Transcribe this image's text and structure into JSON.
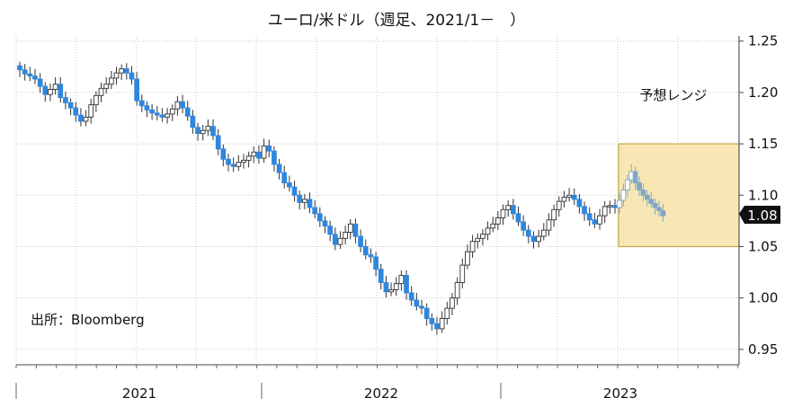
{
  "chart_data": {
    "type": "candlestick",
    "title": "ユーロ/米ドル（週足、2021/1－　）",
    "source_note": "出所：Bloomberg",
    "range_label": "予想レンジ",
    "current_label": "1.08",
    "xlabel": "",
    "ylabel": "",
    "ylim": [
      0.935,
      1.255
    ],
    "y_ticks": [
      {
        "value": 0.95,
        "label": "0.95"
      },
      {
        "value": 1.0,
        "label": "1.00"
      },
      {
        "value": 1.05,
        "label": "1.05"
      },
      {
        "value": 1.1,
        "label": "1.10"
      },
      {
        "value": 1.15,
        "label": "1.15"
      },
      {
        "value": 1.2,
        "label": "1.20"
      },
      {
        "value": 1.25,
        "label": "1.25"
      }
    ],
    "x_labels": [
      "2021",
      "2022",
      "2023"
    ],
    "grid": true,
    "forecast_range": {
      "y_low": 1.05,
      "y_high": 1.15
    },
    "colors": {
      "up": "#ffffff",
      "down": "#2e86de",
      "projection": "#7fa7c7",
      "forecast_fill": "#f8e7b4",
      "forecast_border": "#c9a646",
      "grid": "#c8c8c8",
      "badge": "#111111"
    },
    "closes": [
      1.222,
      1.218,
      1.216,
      1.213,
      1.206,
      1.198,
      1.203,
      1.208,
      1.195,
      1.19,
      1.185,
      1.178,
      1.172,
      1.176,
      1.188,
      1.197,
      1.204,
      1.208,
      1.214,
      1.219,
      1.223,
      1.219,
      1.213,
      1.192,
      1.187,
      1.183,
      1.18,
      1.178,
      1.176,
      1.179,
      1.184,
      1.191,
      1.185,
      1.177,
      1.166,
      1.16,
      1.163,
      1.167,
      1.158,
      1.145,
      1.135,
      1.13,
      1.128,
      1.132,
      1.134,
      1.138,
      1.142,
      1.136,
      1.148,
      1.143,
      1.13,
      1.122,
      1.112,
      1.108,
      1.1,
      1.093,
      1.096,
      1.088,
      1.082,
      1.075,
      1.07,
      1.062,
      1.052,
      1.058,
      1.064,
      1.072,
      1.06,
      1.05,
      1.042,
      1.04,
      1.028,
      1.015,
      1.006,
      1.008,
      1.014,
      1.022,
      1.005,
      0.998,
      0.992,
      0.99,
      0.98,
      0.975,
      0.97,
      0.98,
      0.99,
      1.0,
      1.015,
      1.032,
      1.045,
      1.055,
      1.058,
      1.062,
      1.068,
      1.072,
      1.078,
      1.086,
      1.09,
      1.082,
      1.074,
      1.066,
      1.06,
      1.055,
      1.06,
      1.066,
      1.076,
      1.086,
      1.094,
      1.098,
      1.1,
      1.096,
      1.089,
      1.082,
      1.076,
      1.072,
      1.08,
      1.089,
      1.09,
      1.088
    ],
    "projection": [
      1.095,
      1.105,
      1.115,
      1.123,
      1.112,
      1.105,
      1.1,
      1.096,
      1.092,
      1.088,
      1.085,
      1.08
    ]
  }
}
